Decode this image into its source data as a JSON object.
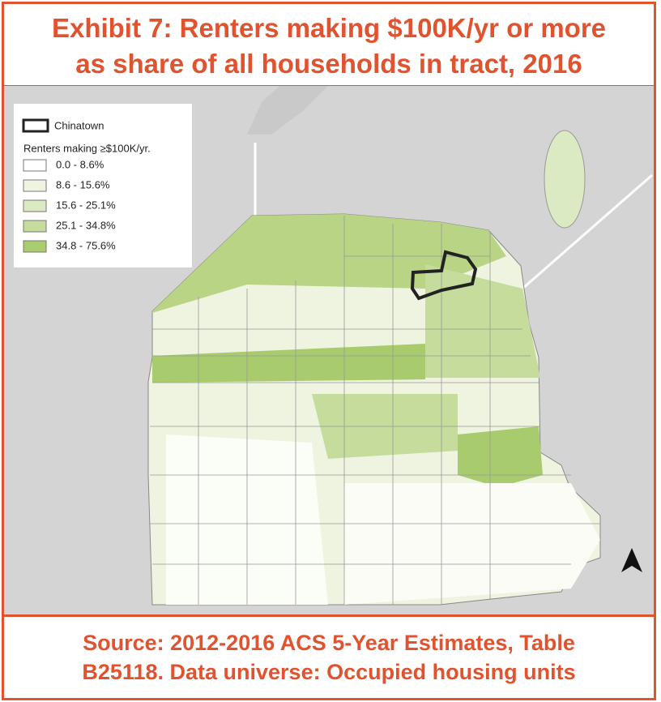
{
  "header": {
    "title": [
      "Exhibit 7: Renters making $100K/yr or more",
      "as share of all households in tract, 2016"
    ]
  },
  "legend": {
    "outline_label": "Chinatown",
    "title": "Renters making ≥$100K/yr.",
    "items": [
      {
        "label": "0.0 - 8.6%",
        "color": "#ffffff"
      },
      {
        "label": "8.6 - 15.6%",
        "color": "#eef4e0"
      },
      {
        "label": "15.6 - 25.1%",
        "color": "#dceac4"
      },
      {
        "label": "25.1 - 34.8%",
        "color": "#c5dc9c"
      },
      {
        "label": "34.8 - 75.6%",
        "color": "#a8cb6e"
      }
    ]
  },
  "footer": {
    "source": [
      "Source: 2012-2016 ACS 5-Year Estimates, Table",
      "B25118. Data universe: Occupied housing units"
    ]
  }
}
